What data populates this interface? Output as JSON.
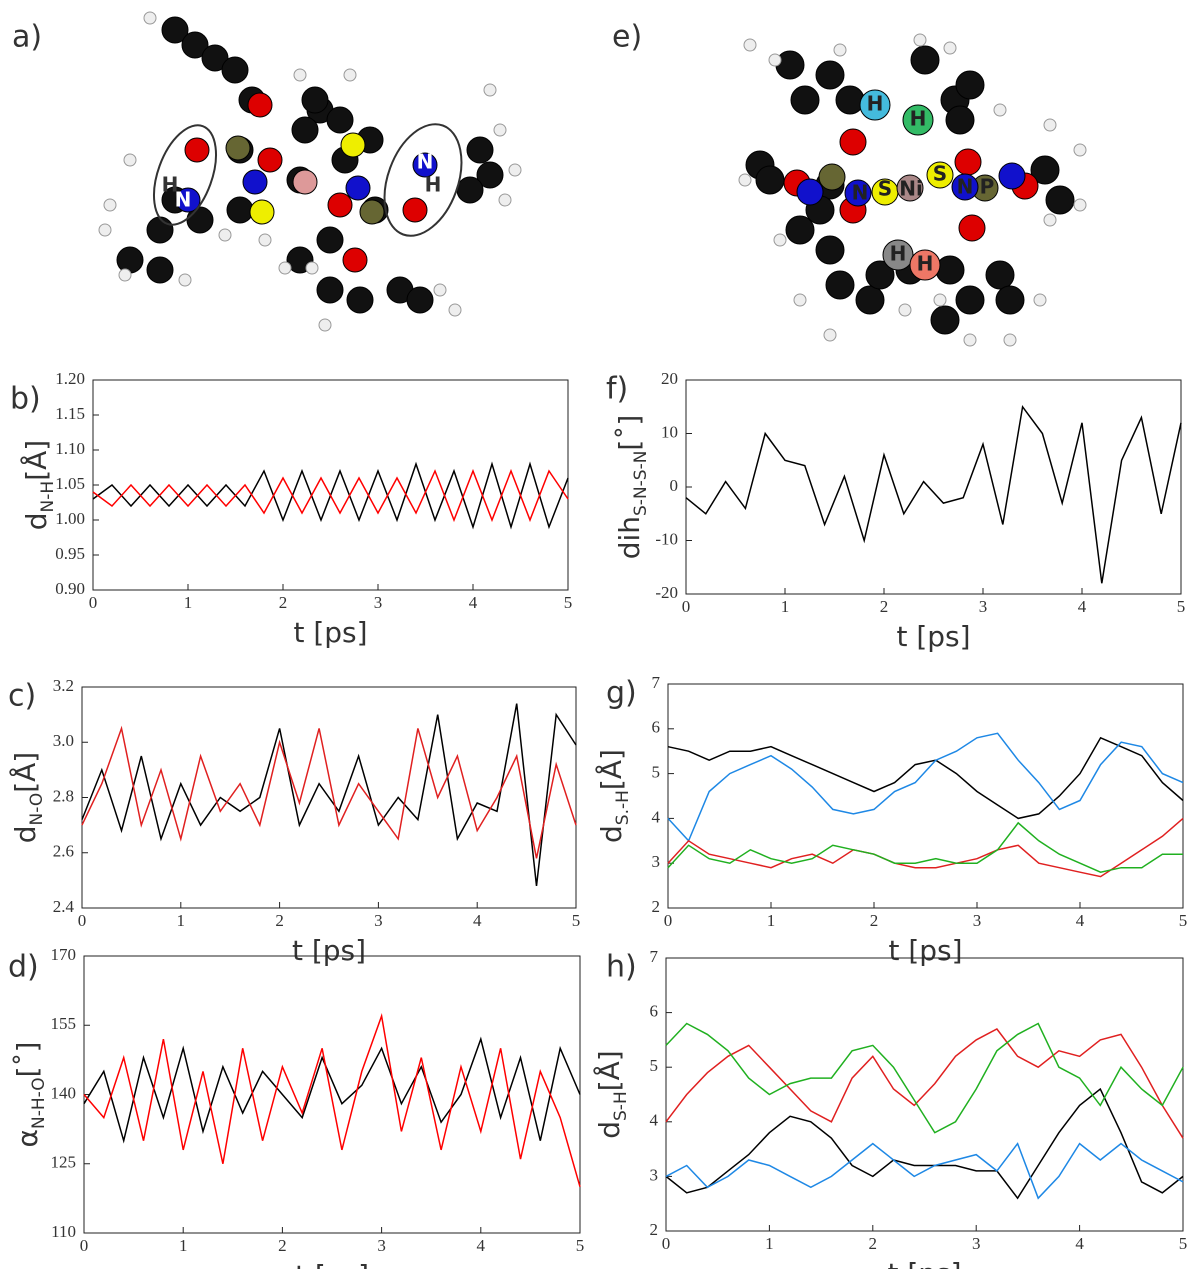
{
  "panels": {
    "a": "a)",
    "e": "e)"
  },
  "molecule_a": {
    "atoms": [
      "H",
      "N",
      "N",
      "H"
    ]
  },
  "molecule_e": {
    "atoms": [
      "H",
      "H",
      "N",
      "S",
      "Ni",
      "S",
      "N",
      "P",
      "H",
      "H"
    ]
  },
  "chart_data": [
    {
      "type": "line",
      "label": "b)",
      "xlabel": "t [ps]",
      "ylabel": {
        "main": "d",
        "sub": "N-H",
        "unit": "[Å]"
      },
      "x": [
        0,
        0.2,
        0.4,
        0.6,
        0.8,
        1,
        1.2,
        1.4,
        1.6,
        1.8,
        2,
        2.2,
        2.4,
        2.6,
        2.8,
        3,
        3.2,
        3.4,
        3.6,
        3.8,
        4,
        4.2,
        4.4,
        4.6,
        4.8,
        5
      ],
      "series": [
        {
          "color": "#000000",
          "values": [
            1.03,
            1.05,
            1.02,
            1.05,
            1.02,
            1.05,
            1.02,
            1.05,
            1.02,
            1.07,
            1.0,
            1.07,
            1.0,
            1.07,
            1.0,
            1.07,
            1.0,
            1.08,
            1.0,
            1.07,
            0.99,
            1.08,
            0.99,
            1.08,
            0.99,
            1.06
          ]
        },
        {
          "color": "#ff0000",
          "values": [
            1.04,
            1.02,
            1.05,
            1.02,
            1.05,
            1.02,
            1.05,
            1.02,
            1.05,
            1.01,
            1.06,
            1.01,
            1.06,
            1.01,
            1.06,
            1.01,
            1.06,
            1.01,
            1.07,
            1.0,
            1.07,
            1.0,
            1.07,
            1.0,
            1.07,
            1.03
          ]
        }
      ],
      "xlim": [
        0,
        5
      ],
      "xticks": [
        0,
        1,
        2,
        3,
        4,
        5
      ],
      "ylim": [
        0.9,
        1.2
      ],
      "yticks": [
        {
          "value": 0.9,
          "label": "0.90"
        },
        0.95,
        {
          "value": 1.0,
          "label": "1.00"
        },
        1.05,
        {
          "value": 1.1,
          "label": "1.10"
        },
        1.15,
        {
          "value": 1.2,
          "label": "1.20"
        }
      ]
    },
    {
      "type": "line",
      "label": "c)",
      "xlabel": "t [ps]",
      "ylabel": {
        "main": "d",
        "sub": "N-O",
        "unit": "[Å]"
      },
      "x": [
        0,
        0.2,
        0.4,
        0.6,
        0.8,
        1,
        1.2,
        1.4,
        1.6,
        1.8,
        2,
        2.2,
        2.4,
        2.6,
        2.8,
        3,
        3.2,
        3.4,
        3.6,
        3.8,
        4,
        4.2,
        4.4,
        4.6,
        4.8,
        5
      ],
      "series": [
        {
          "color": "#000000",
          "values": [
            2.72,
            2.9,
            2.68,
            2.95,
            2.65,
            2.85,
            2.7,
            2.8,
            2.75,
            2.8,
            3.05,
            2.7,
            2.85,
            2.75,
            2.95,
            2.7,
            2.8,
            2.72,
            3.1,
            2.65,
            2.78,
            2.75,
            3.14,
            2.48,
            3.1,
            2.99
          ]
        },
        {
          "color": "#e02020",
          "values": [
            2.7,
            2.85,
            3.05,
            2.7,
            2.9,
            2.65,
            2.95,
            2.75,
            2.85,
            2.7,
            3.0,
            2.78,
            3.05,
            2.7,
            2.85,
            2.75,
            2.65,
            3.05,
            2.8,
            2.95,
            2.68,
            2.8,
            2.95,
            2.58,
            2.92,
            2.7
          ]
        }
      ],
      "xlim": [
        0,
        5
      ],
      "xticks": [
        0,
        1,
        2,
        3,
        4,
        5
      ],
      "ylim": [
        2.4,
        3.2
      ],
      "yticks": [
        2.4,
        2.6,
        2.8,
        {
          "value": 3.0,
          "label": "3.0"
        },
        3.2
      ]
    },
    {
      "type": "line",
      "label": "d)",
      "xlabel": "t [ps]",
      "ylabel": {
        "main": "α",
        "sub": "N-H-O",
        "unit": "[˚]"
      },
      "x": [
        0,
        0.2,
        0.4,
        0.6,
        0.8,
        1,
        1.2,
        1.4,
        1.6,
        1.8,
        2,
        2.2,
        2.4,
        2.6,
        2.8,
        3,
        3.2,
        3.4,
        3.6,
        3.8,
        4,
        4.2,
        4.4,
        4.6,
        4.8,
        5
      ],
      "series": [
        {
          "color": "#000000",
          "values": [
            138,
            145,
            130,
            148,
            135,
            150,
            132,
            146,
            136,
            145,
            140,
            135,
            148,
            138,
            142,
            150,
            138,
            146,
            134,
            140,
            152,
            135,
            148,
            130,
            150,
            140
          ]
        },
        {
          "color": "#ff0000",
          "values": [
            140,
            135,
            148,
            130,
            152,
            128,
            145,
            125,
            150,
            130,
            146,
            136,
            150,
            128,
            145,
            157,
            132,
            148,
            128,
            146,
            132,
            150,
            126,
            145,
            135,
            120
          ]
        }
      ],
      "xlim": [
        0,
        5
      ],
      "xticks": [
        0,
        1,
        2,
        3,
        4,
        5
      ],
      "ylim": [
        110,
        170
      ],
      "yticks": [
        110,
        125,
        140,
        155,
        170
      ]
    },
    {
      "type": "line",
      "label": "f)",
      "xlabel": "t [ps]",
      "ylabel": {
        "main": "dih",
        "sub": "S-N-S-N",
        "unit": "[˚]"
      },
      "x": [
        0,
        0.2,
        0.4,
        0.6,
        0.8,
        1,
        1.2,
        1.4,
        1.6,
        1.8,
        2,
        2.2,
        2.4,
        2.6,
        2.8,
        3,
        3.2,
        3.4,
        3.6,
        3.8,
        4,
        4.2,
        4.4,
        4.6,
        4.8,
        5
      ],
      "series": [
        {
          "color": "#000000",
          "values": [
            -2,
            -5,
            1,
            -4,
            10,
            5,
            4,
            -7,
            2,
            -10,
            6,
            -5,
            1,
            -3,
            -2,
            8,
            -7,
            15,
            10,
            -3,
            12,
            -18,
            5,
            13,
            -5,
            12
          ]
        }
      ],
      "xlim": [
        0,
        5
      ],
      "xticks": [
        0,
        1,
        2,
        3,
        4,
        5
      ],
      "ylim": [
        -20,
        20
      ],
      "yticks": [
        -20,
        -10,
        0,
        10,
        20
      ]
    },
    {
      "type": "line",
      "label": "g)",
      "xlabel": "t [ps]",
      "ylabel": {
        "main": "d",
        "sub": "S.-H",
        "unit": "[Å]"
      },
      "x": [
        0,
        0.2,
        0.4,
        0.6,
        0.8,
        1,
        1.2,
        1.4,
        1.6,
        1.8,
        2,
        2.2,
        2.4,
        2.6,
        2.8,
        3,
        3.2,
        3.4,
        3.6,
        3.8,
        4,
        4.2,
        4.4,
        4.6,
        4.8,
        5
      ],
      "series": [
        {
          "color": "#000000",
          "values": [
            5.6,
            5.5,
            5.3,
            5.5,
            5.5,
            5.6,
            5.4,
            5.2,
            5.0,
            4.8,
            4.6,
            4.8,
            5.2,
            5.3,
            5.0,
            4.6,
            4.3,
            4.0,
            4.1,
            4.5,
            5.0,
            5.8,
            5.6,
            5.4,
            4.8,
            4.4
          ]
        },
        {
          "color": "#1e88e5",
          "values": [
            4.0,
            3.5,
            4.6,
            5.0,
            5.2,
            5.4,
            5.1,
            4.7,
            4.2,
            4.1,
            4.2,
            4.6,
            4.8,
            5.3,
            5.5,
            5.8,
            5.9,
            5.3,
            4.8,
            4.2,
            4.4,
            5.2,
            5.7,
            5.6,
            5.0,
            4.8
          ]
        },
        {
          "color": "#e02020",
          "values": [
            3.0,
            3.5,
            3.2,
            3.1,
            3.0,
            2.9,
            3.1,
            3.2,
            3.0,
            3.3,
            3.2,
            3.0,
            2.9,
            2.9,
            3.0,
            3.1,
            3.3,
            3.4,
            3.0,
            2.9,
            2.8,
            2.7,
            3.0,
            3.3,
            3.6,
            4.0
          ]
        },
        {
          "color": "#20b020",
          "values": [
            2.9,
            3.4,
            3.1,
            3.0,
            3.3,
            3.1,
            3.0,
            3.1,
            3.4,
            3.3,
            3.2,
            3.0,
            3.0,
            3.1,
            3.0,
            3.0,
            3.3,
            3.9,
            3.5,
            3.2,
            3.0,
            2.8,
            2.9,
            2.9,
            3.2,
            3.2
          ]
        }
      ],
      "xlim": [
        0,
        5
      ],
      "xticks": [
        0,
        1,
        2,
        3,
        4,
        5
      ],
      "ylim": [
        2,
        7
      ],
      "yticks": [
        2,
        3,
        4,
        5,
        6,
        7
      ]
    },
    {
      "type": "line",
      "label": "h)",
      "xlabel": "t [ps]",
      "ylabel": {
        "main": "d",
        "sub": "S-H",
        "unit": "[Å]"
      },
      "x": [
        0,
        0.2,
        0.4,
        0.6,
        0.8,
        1,
        1.2,
        1.4,
        1.6,
        1.8,
        2,
        2.2,
        2.4,
        2.6,
        2.8,
        3,
        3.2,
        3.4,
        3.6,
        3.8,
        4,
        4.2,
        4.4,
        4.6,
        4.8,
        5
      ],
      "series": [
        {
          "color": "#000000",
          "values": [
            3.0,
            2.7,
            2.8,
            3.1,
            3.4,
            3.8,
            4.1,
            4.0,
            3.7,
            3.2,
            3.0,
            3.3,
            3.2,
            3.2,
            3.2,
            3.1,
            3.1,
            2.6,
            3.2,
            3.8,
            4.3,
            4.6,
            3.8,
            2.9,
            2.7,
            3.0
          ]
        },
        {
          "color": "#1e88e5",
          "values": [
            3.0,
            3.2,
            2.8,
            3.0,
            3.3,
            3.2,
            3.0,
            2.8,
            3.0,
            3.3,
            3.6,
            3.3,
            3.0,
            3.2,
            3.3,
            3.4,
            3.1,
            3.6,
            2.6,
            3.0,
            3.6,
            3.3,
            3.6,
            3.3,
            3.1,
            2.9
          ]
        },
        {
          "color": "#e02020",
          "values": [
            4.0,
            4.5,
            4.9,
            5.2,
            5.4,
            5.0,
            4.6,
            4.2,
            4.0,
            4.8,
            5.2,
            4.6,
            4.3,
            4.7,
            5.2,
            5.5,
            5.7,
            5.2,
            5.0,
            5.3,
            5.2,
            5.5,
            5.6,
            5.0,
            4.3,
            3.7
          ]
        },
        {
          "color": "#20b020",
          "values": [
            5.4,
            5.8,
            5.6,
            5.3,
            4.8,
            4.5,
            4.7,
            4.8,
            4.8,
            5.3,
            5.4,
            5.0,
            4.4,
            3.8,
            4.0,
            4.6,
            5.3,
            5.6,
            5.8,
            5.0,
            4.8,
            4.3,
            5.0,
            4.6,
            4.3,
            5.0
          ]
        }
      ],
      "xlim": [
        0,
        5
      ],
      "xticks": [
        0,
        1,
        2,
        3,
        4,
        5
      ],
      "ylim": [
        2,
        7
      ],
      "yticks": [
        2,
        3,
        4,
        5,
        6,
        7
      ]
    }
  ]
}
